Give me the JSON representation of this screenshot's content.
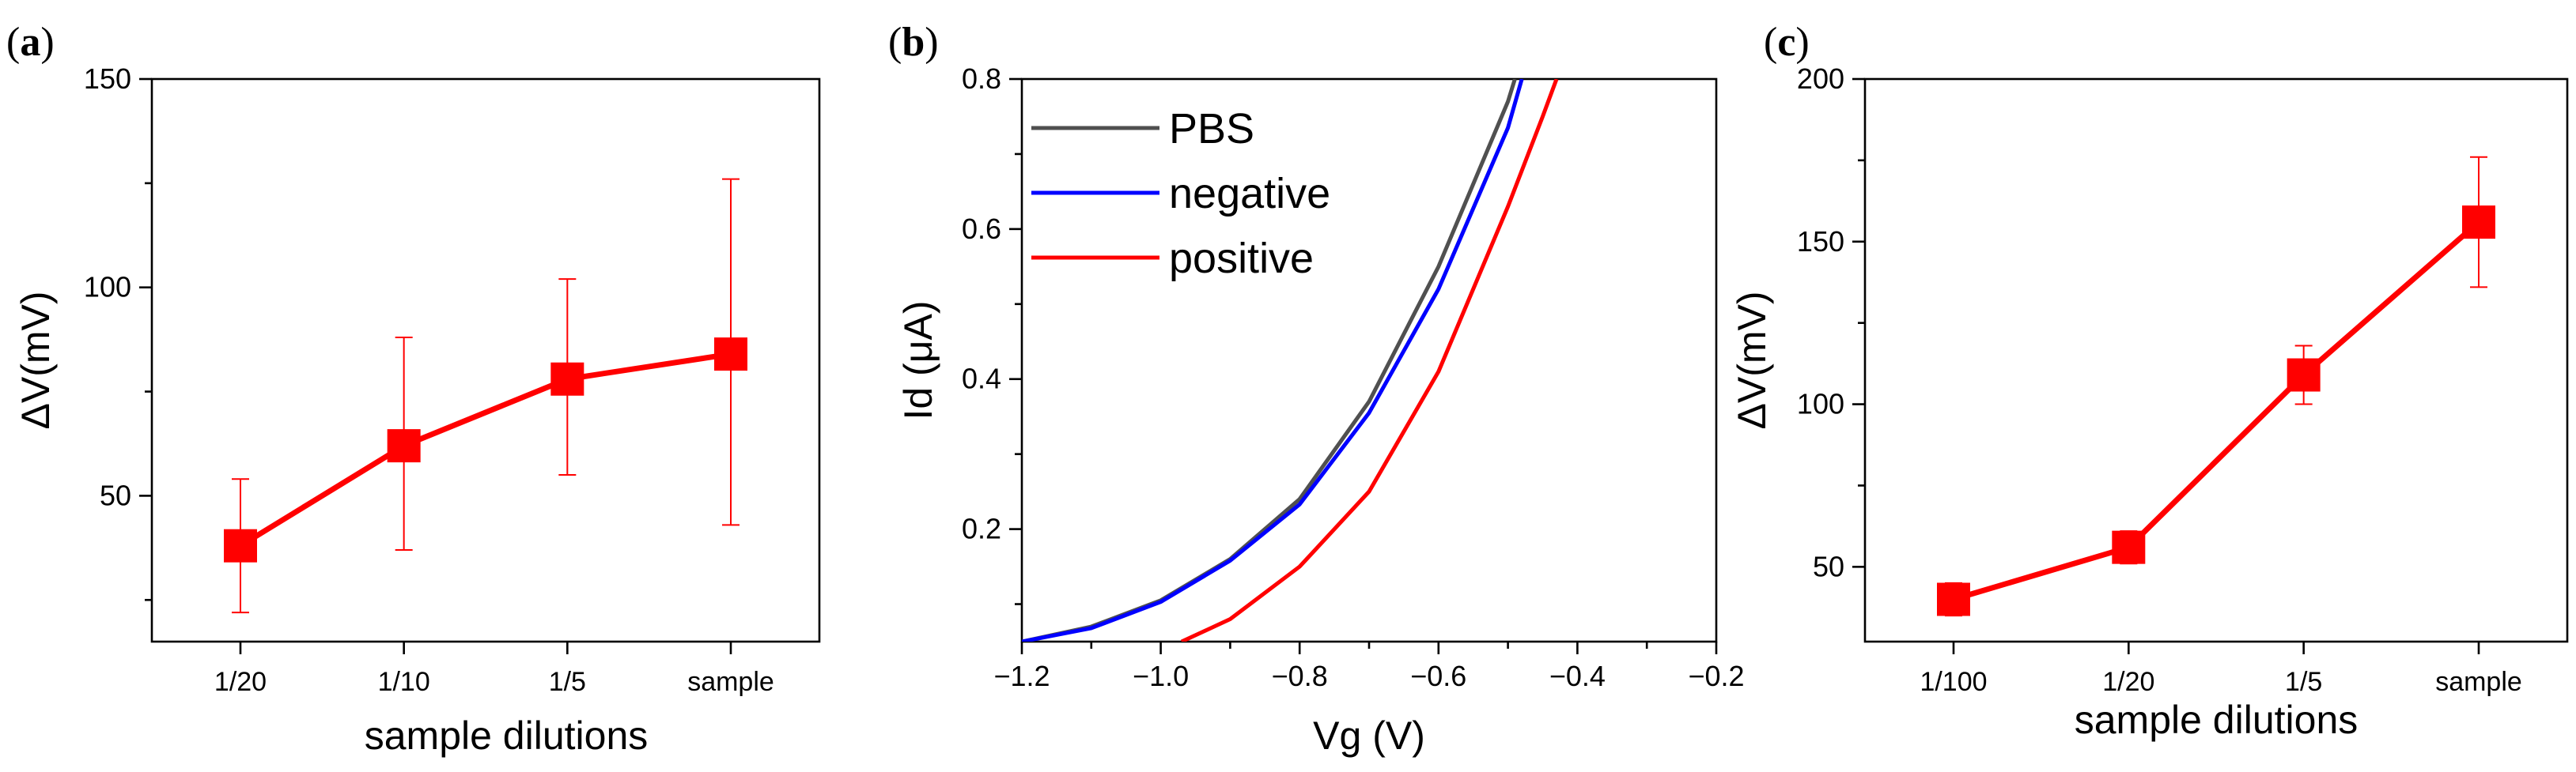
{
  "chart_data": [
    {
      "panel": "(a)",
      "type": "line",
      "xlabel": "sample dilutions",
      "ylabel": "ΔV(mV)",
      "categories": [
        "1/20",
        "1/10",
        "1/5",
        "sample"
      ],
      "ylim": [
        15,
        150
      ],
      "yticks": [
        50,
        100,
        150
      ],
      "series": [
        {
          "name": "ΔV",
          "color": "#ff0000",
          "marker": "square",
          "values": [
            38,
            62,
            78,
            84
          ],
          "err_low": [
            22,
            37,
            55,
            43
          ],
          "err_high": [
            54,
            88,
            102,
            126
          ]
        }
      ]
    },
    {
      "panel": "(b)",
      "type": "line",
      "xlabel": "Vg (V)",
      "ylabel": "Id (μA)",
      "xlim": [
        -1.2,
        -0.2
      ],
      "ylim": [
        0.05,
        0.8
      ],
      "xticks": [
        -1.2,
        -1.0,
        -0.8,
        -0.6,
        -0.4,
        -0.2
      ],
      "xticklabels": [
        "−1.2",
        "−1.0",
        "−0.8",
        "−0.6",
        "−0.4",
        "−0.2"
      ],
      "yticks": [
        0.2,
        0.4,
        0.6,
        0.8
      ],
      "yticklabels": [
        "0.2",
        "0.4",
        "0.6",
        "0.8"
      ],
      "legend": "top-left",
      "series": [
        {
          "name": "PBS",
          "color": "#505050",
          "x": [
            -1.2,
            -1.1,
            -1.0,
            -0.9,
            -0.8,
            -0.7,
            -0.6,
            -0.5,
            -0.49
          ],
          "y": [
            0.05,
            0.07,
            0.105,
            0.16,
            0.24,
            0.37,
            0.55,
            0.77,
            0.8
          ]
        },
        {
          "name": "negative",
          "color": "#0000ff",
          "x": [
            -1.2,
            -1.1,
            -1.0,
            -0.9,
            -0.8,
            -0.7,
            -0.6,
            -0.5,
            -0.48
          ],
          "y": [
            0.05,
            0.068,
            0.103,
            0.158,
            0.233,
            0.355,
            0.52,
            0.735,
            0.8
          ]
        },
        {
          "name": "positive",
          "color": "#ff0000",
          "x": [
            -0.97,
            -0.9,
            -0.8,
            -0.7,
            -0.6,
            -0.5,
            -0.45,
            -0.43
          ],
          "y": [
            0.05,
            0.08,
            0.15,
            0.25,
            0.41,
            0.63,
            0.75,
            0.8
          ]
        }
      ]
    },
    {
      "panel": "(c)",
      "type": "line",
      "xlabel": "sample dilutions",
      "ylabel": "ΔV(mV)",
      "categories": [
        "1/100",
        "1/20",
        "1/5",
        "sample"
      ],
      "ylim": [
        27,
        200
      ],
      "yticks": [
        50,
        100,
        150,
        200
      ],
      "series": [
        {
          "name": "ΔV",
          "color": "#ff0000",
          "marker": "square",
          "values": [
            40,
            56,
            109,
            156
          ],
          "err_low": [
            35,
            51,
            100,
            136
          ],
          "err_high": [
            45,
            61,
            118,
            176
          ]
        }
      ]
    }
  ]
}
